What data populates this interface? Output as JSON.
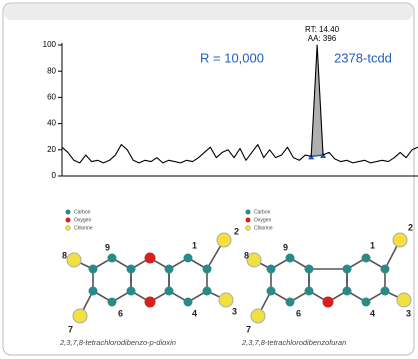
{
  "chart_data": {
    "type": "line",
    "annotations": [
      "R = 10,000",
      "2378-tcdd",
      "RT: 14.40",
      "AA: 396"
    ],
    "x": [
      0,
      1,
      2,
      3,
      4,
      5,
      6,
      7,
      8,
      9,
      10,
      11,
      12,
      13,
      14,
      15,
      16,
      17,
      18,
      19,
      20,
      21,
      22,
      23,
      24,
      25,
      26,
      27,
      28,
      29,
      30,
      31,
      32,
      33,
      34,
      35,
      36,
      37,
      38,
      39,
      40,
      41,
      42,
      43,
      44,
      45,
      46,
      47,
      48,
      49,
      50,
      51,
      52,
      53,
      54,
      55,
      56,
      57,
      58,
      59,
      60
    ],
    "values": [
      22,
      18,
      12,
      10,
      16,
      11,
      12,
      10,
      12,
      16,
      24,
      20,
      12,
      10,
      12,
      11,
      14,
      10,
      12,
      11,
      10,
      12,
      11,
      14,
      18,
      22,
      14,
      18,
      20,
      14,
      21,
      12,
      18,
      24,
      14,
      20,
      14,
      16,
      22,
      14,
      12,
      16,
      15,
      100,
      16,
      18,
      13,
      11,
      12,
      10,
      11,
      12,
      10,
      11,
      12,
      11,
      14,
      18,
      14,
      20,
      22
    ],
    "color": "#000000",
    "peak_color": "#b0b0b0",
    "xlim": [
      0,
      60
    ],
    "ylim": [
      0,
      100
    ],
    "yticks": [
      0,
      20,
      40,
      60,
      80,
      100
    ]
  },
  "structures": [
    {
      "legend": [
        "Carbon",
        "Oxygen",
        "Chlorine"
      ],
      "labels": [
        "9",
        "1",
        "2",
        "8",
        "3",
        "4",
        "6",
        "7"
      ],
      "caption": "2,3,7,8-tetrachlorodibenzo-p-dioxin"
    },
    {
      "legend": [
        "Carbon",
        "Oxygen",
        "Chlorine"
      ],
      "labels": [
        "9",
        "1",
        "2",
        "8",
        "3",
        "4",
        "6",
        "7"
      ],
      "caption": "2,3,7,8-tetrachlorodibenzofuran"
    }
  ]
}
